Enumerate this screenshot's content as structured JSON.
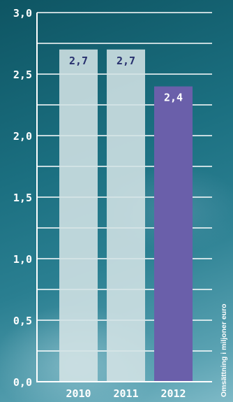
{
  "chart_data": {
    "type": "bar",
    "categories": [
      "2010",
      "2011",
      "2012"
    ],
    "values": [
      2.7,
      2.7,
      2.4
    ],
    "value_labels": [
      "2,7",
      "2,7",
      "2,4"
    ],
    "y_ticks": [
      0,
      0.5,
      1.0,
      1.5,
      2.0,
      2.5,
      3.0
    ],
    "y_tick_labels": [
      "0,0",
      "0,5",
      "1,0",
      "1,5",
      "2,0",
      "2,5",
      "3,0"
    ],
    "ylim": [
      0,
      3.0
    ],
    "ylabel": "Omsättning i miljoner euro",
    "xlabel": "",
    "title": "",
    "grid": true,
    "colors": {
      "bar_default": "#d3e2e5",
      "bar_highlight": "#6a5faa",
      "label_on_light": "#27306e",
      "label_on_dark": "#ffffff",
      "axis_text": "#ffffff",
      "grid": "#ffffff"
    }
  }
}
